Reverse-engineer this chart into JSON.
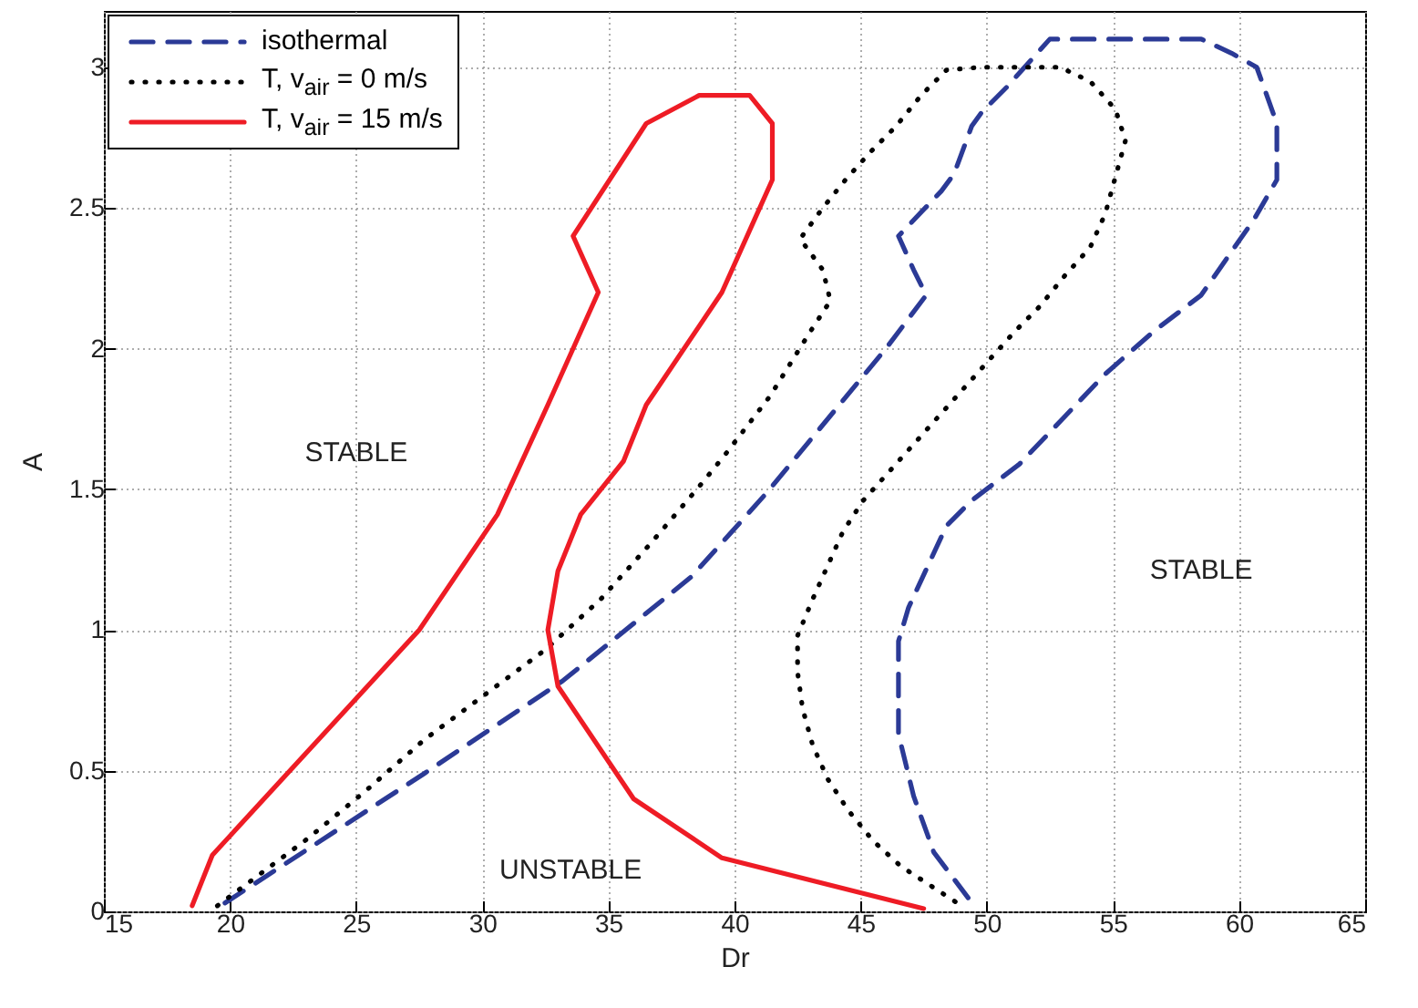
{
  "chart_data": {
    "type": "line",
    "xlabel": "Dr",
    "ylabel": "A",
    "xlim": [
      15,
      65
    ],
    "ylim": [
      0,
      3.2
    ],
    "xticks": [
      15,
      20,
      25,
      30,
      35,
      40,
      45,
      50,
      55,
      60,
      65
    ],
    "yticks": [
      0,
      0.5,
      1,
      1.5,
      2,
      2.5,
      3
    ],
    "grid": true,
    "legend": "top left",
    "marker": "none",
    "series": [
      {
        "name": "isothermal",
        "color": "#2b3a96",
        "line_style": "dashed",
        "x": [
          19.8,
          27.7,
          33.2,
          38.3,
          41.3,
          46.0,
          47.6,
          47.1,
          46.5,
          48.2,
          48.7,
          49.4,
          49.8,
          50.8,
          52.5,
          58.5,
          59.7,
          60.7,
          61.5,
          61.5,
          60.6,
          58.5,
          56.6,
          54.7,
          53.0,
          51.3,
          49.4,
          48.4,
          46.9,
          46.5,
          46.5,
          47.1,
          47.9,
          49.5
        ],
        "values": [
          0.03,
          0.49,
          0.82,
          1.19,
          1.49,
          2.0,
          2.19,
          2.28,
          2.4,
          2.56,
          2.62,
          2.79,
          2.84,
          2.93,
          3.1,
          3.1,
          3.05,
          3.0,
          2.8,
          2.6,
          2.46,
          2.19,
          2.06,
          1.91,
          1.75,
          1.59,
          1.46,
          1.37,
          1.08,
          0.96,
          0.63,
          0.41,
          0.21,
          0.02
        ]
      },
      {
        "name": "T, v$_{air}$ = 0 m/s",
        "color": "#000000",
        "line_style": "dotted",
        "x": [
          19.5,
          20.7,
          23.1,
          25.4,
          27.7,
          30.1,
          32.5,
          34.7,
          36.7,
          38.6,
          39.6,
          41.4,
          43.0,
          43.8,
          43.5,
          42.6,
          43.5,
          44.4,
          45.4,
          46.4,
          47.4,
          48.4,
          49.8,
          51.4,
          52.9,
          54.1,
          55.1,
          55.5,
          55.1,
          54.7,
          54.1,
          53.1,
          52.1,
          51.1,
          50.1,
          49.1,
          48.1,
          47.1,
          46.1,
          45.1,
          44.3,
          43.7,
          43.1,
          42.5,
          42.5,
          42.7,
          43.1,
          43.7,
          44.5,
          45.5,
          46.6,
          47.8,
          49.0
        ],
        "values": [
          0.02,
          0.1,
          0.26,
          0.43,
          0.61,
          0.77,
          0.93,
          1.11,
          1.31,
          1.51,
          1.62,
          1.83,
          2.06,
          2.17,
          2.28,
          2.39,
          2.5,
          2.6,
          2.7,
          2.79,
          2.9,
          2.99,
          3.0,
          3.0,
          3.0,
          2.95,
          2.85,
          2.74,
          2.61,
          2.48,
          2.36,
          2.26,
          2.15,
          2.06,
          1.96,
          1.86,
          1.76,
          1.66,
          1.56,
          1.46,
          1.35,
          1.23,
          1.11,
          0.98,
          0.85,
          0.72,
          0.59,
          0.47,
          0.36,
          0.25,
          0.16,
          0.09,
          0.02
        ]
      },
      {
        "name": "T, v$_{air}$ = 15 m/s",
        "color": "#ee1c25",
        "line_style": "solid",
        "x": [
          18.5,
          19.3,
          23.4,
          27.5,
          30.6,
          32.6,
          34.6,
          33.6,
          36.5,
          38.6,
          40.6,
          41.5,
          41.5,
          40.7,
          39.5,
          36.5,
          35.6,
          33.9,
          33.0,
          32.6,
          33.0,
          36.0,
          39.5,
          47.5
        ],
        "values": [
          0.02,
          0.2,
          0.6,
          1.0,
          1.41,
          1.8,
          2.2,
          2.4,
          2.8,
          2.9,
          2.9,
          2.8,
          2.6,
          2.44,
          2.2,
          1.8,
          1.6,
          1.41,
          1.21,
          1.0,
          0.8,
          0.4,
          0.19,
          0.01
        ]
      }
    ],
    "annotations": [
      "STABLE",
      "STABLE",
      "UNSTABLE"
    ]
  }
}
